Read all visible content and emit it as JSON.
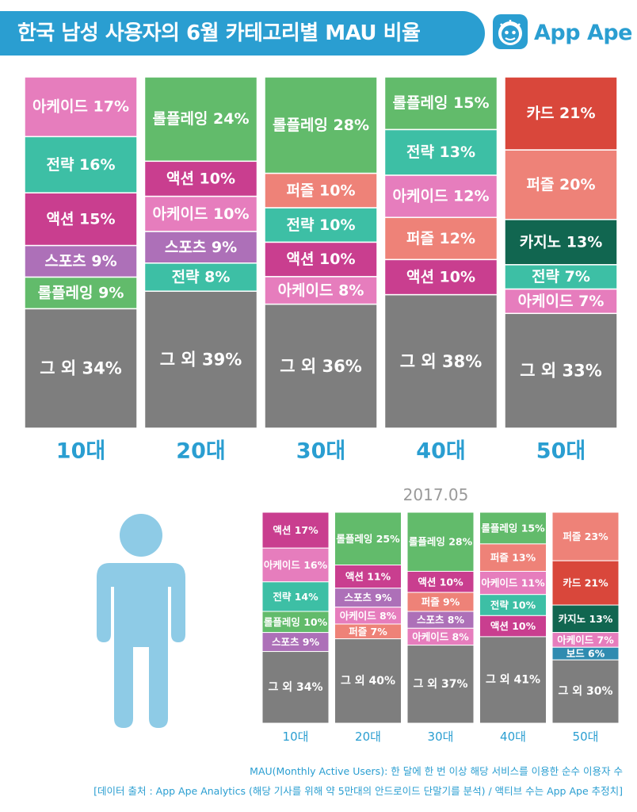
{
  "title": "한국 남성 사용자의 6월 카테고리별 MAU 비율",
  "brand": "App Ape",
  "colors": {
    "아케이드": "#e67dbd",
    "전략": "#3dbfa5",
    "액션": "#c93e8f",
    "스포츠": "#ad70b8",
    "롤플레잉": "#62bb6b",
    "퍼즐": "#ee8278",
    "카드": "#d9473b",
    "카지노": "#116650",
    "보드": "#2f8bb0",
    "그 외": "#7e7e7e",
    "age_label": "#2a9ed1",
    "brand": "#2a9ed1"
  },
  "chart_data": [
    {
      "type": "stacked-bar",
      "title": "한국 남성 사용자의 6월 카테고리별 MAU 비율",
      "period": "2017.06",
      "categories": [
        "10대",
        "20대",
        "30대",
        "40대",
        "50대"
      ],
      "stacks": [
        [
          {
            "name": "아케이드",
            "value": 17
          },
          {
            "name": "전략",
            "value": 16
          },
          {
            "name": "액션",
            "value": 15
          },
          {
            "name": "스포츠",
            "value": 9
          },
          {
            "name": "롤플레잉",
            "value": 9
          },
          {
            "name": "그 외",
            "value": 34
          }
        ],
        [
          {
            "name": "롤플레잉",
            "value": 24
          },
          {
            "name": "액션",
            "value": 10
          },
          {
            "name": "아케이드",
            "value": 10
          },
          {
            "name": "스포츠",
            "value": 9
          },
          {
            "name": "전략",
            "value": 8
          },
          {
            "name": "그 외",
            "value": 39
          }
        ],
        [
          {
            "name": "롤플레잉",
            "value": 28
          },
          {
            "name": "퍼즐",
            "value": 10
          },
          {
            "name": "전략",
            "value": 10
          },
          {
            "name": "액션",
            "value": 10
          },
          {
            "name": "아케이드",
            "value": 8
          },
          {
            "name": "그 외",
            "value": 36
          }
        ],
        [
          {
            "name": "롤플레잉",
            "value": 15
          },
          {
            "name": "전략",
            "value": 13
          },
          {
            "name": "아케이드",
            "value": 12
          },
          {
            "name": "퍼즐",
            "value": 12
          },
          {
            "name": "액션",
            "value": 10
          },
          {
            "name": "그 외",
            "value": 38
          }
        ],
        [
          {
            "name": "카드",
            "value": 21
          },
          {
            "name": "퍼즐",
            "value": 20
          },
          {
            "name": "카지노",
            "value": 13
          },
          {
            "name": "전략",
            "value": 7
          },
          {
            "name": "아케이드",
            "value": 7
          },
          {
            "name": "그 외",
            "value": 33
          }
        ]
      ]
    },
    {
      "type": "stacked-bar",
      "title": "2017.05",
      "period": "2017.05",
      "categories": [
        "10대",
        "20대",
        "30대",
        "40대",
        "50대"
      ],
      "stacks": [
        [
          {
            "name": "액션",
            "value": 17
          },
          {
            "name": "아케이드",
            "value": 16
          },
          {
            "name": "전략",
            "value": 14
          },
          {
            "name": "롤플레잉",
            "value": 10
          },
          {
            "name": "스포츠",
            "value": 9
          },
          {
            "name": "그 외",
            "value": 34
          }
        ],
        [
          {
            "name": "롤플레잉",
            "value": 25
          },
          {
            "name": "액션",
            "value": 11
          },
          {
            "name": "스포츠",
            "value": 9
          },
          {
            "name": "아케이드",
            "value": 8
          },
          {
            "name": "퍼즐",
            "value": 7
          },
          {
            "name": "그 외",
            "value": 40
          }
        ],
        [
          {
            "name": "롤플레잉",
            "value": 28
          },
          {
            "name": "액션",
            "value": 10
          },
          {
            "name": "퍼즐",
            "value": 9
          },
          {
            "name": "스포츠",
            "value": 8
          },
          {
            "name": "아케이드",
            "value": 8
          },
          {
            "name": "그 외",
            "value": 37
          }
        ],
        [
          {
            "name": "롤플레잉",
            "value": 15
          },
          {
            "name": "퍼즐",
            "value": 13
          },
          {
            "name": "아케이드",
            "value": 11
          },
          {
            "name": "전략",
            "value": 10
          },
          {
            "name": "액션",
            "value": 10
          },
          {
            "name": "그 외",
            "value": 41
          }
        ],
        [
          {
            "name": "퍼즐",
            "value": 23
          },
          {
            "name": "카드",
            "value": 21
          },
          {
            "name": "카지노",
            "value": 13
          },
          {
            "name": "아케이드",
            "value": 7
          },
          {
            "name": "보드",
            "value": 6
          },
          {
            "name": "그 외",
            "value": 30
          }
        ]
      ]
    }
  ],
  "date_label": "2017.05",
  "footnotes": {
    "line1": "MAU(Monthly Active Users): 한 달에 한 번 이상 해당 서비스를 이용한 순수 이용자 수",
    "line2": "[데이터 출처 : App Ape Analytics (해당 기사를 위해 약 5만대의 안드로이드 단말기를 분석) / 액티브 수는 App Ape 추정치]"
  }
}
